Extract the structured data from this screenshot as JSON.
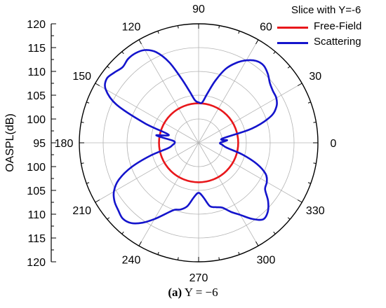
{
  "chart_data": {
    "type": "polar_line",
    "title": "",
    "radial_axis": {
      "label": "OASPL(dB)",
      "range": [
        95,
        120
      ],
      "ticks": [
        95,
        100,
        105,
        110,
        115,
        120
      ]
    },
    "angular_axis": {
      "ticks": [
        0,
        30,
        60,
        90,
        120,
        150,
        180,
        210,
        240,
        270,
        300,
        330
      ],
      "unit": "degrees"
    },
    "grid": true,
    "legend": {
      "title": "Slice with Y=-6",
      "placement": "top-right"
    },
    "series": [
      {
        "name": "Free-Field",
        "color": "#e8171b",
        "angles": [
          0,
          30,
          60,
          90,
          120,
          150,
          180,
          210,
          240,
          270,
          300,
          330,
          360
        ],
        "values": [
          103.3,
          103.3,
          103.3,
          103.3,
          103.3,
          103.3,
          103.3,
          103.3,
          103.3,
          103.3,
          103.3,
          103.3,
          103.3
        ]
      },
      {
        "name": "Scattering",
        "color": "#1414cc",
        "angles": [
          0,
          5,
          10,
          15,
          20,
          25,
          30,
          35,
          40,
          45,
          50,
          55,
          60,
          65,
          70,
          75,
          80,
          85,
          90,
          95,
          100,
          105,
          110,
          115,
          120,
          125,
          130,
          135,
          140,
          145,
          150,
          155,
          160,
          165,
          170,
          175,
          180,
          185,
          190,
          195,
          200,
          205,
          210,
          215,
          220,
          225,
          230,
          235,
          240,
          245,
          250,
          255,
          260,
          265,
          270,
          275,
          280,
          285,
          290,
          295,
          300,
          305,
          310,
          315,
          320,
          325,
          330,
          335,
          340,
          345,
          350,
          355,
          360
        ],
        "values": [
          99.5,
          101.0,
          100.0,
          106.5,
          111.0,
          113.0,
          113.8,
          114.0,
          114.5,
          115.5,
          116.2,
          116.0,
          115.0,
          113.5,
          111.5,
          108.5,
          105.5,
          103.5,
          103.5,
          104.0,
          106.0,
          109.0,
          113.0,
          116.0,
          117.5,
          118.0,
          118.0,
          117.5,
          118.0,
          118.5,
          117.5,
          114.0,
          107.0,
          101.5,
          104.0,
          100.5,
          100.0,
          100.5,
          101.5,
          105.5,
          110.0,
          113.5,
          115.5,
          116.5,
          117.0,
          117.5,
          117.0,
          115.5,
          113.5,
          111.5,
          110.0,
          109.5,
          108.5,
          106.5,
          105.5,
          106.5,
          108.5,
          109.0,
          109.5,
          111.0,
          112.5,
          114.5,
          116.0,
          115.5,
          114.0,
          112.0,
          111.5,
          110.5,
          108.0,
          104.5,
          101.0,
          100.0,
          99.5
        ]
      }
    ],
    "caption": {
      "label": "(a)",
      "text": " Y = −6"
    }
  }
}
